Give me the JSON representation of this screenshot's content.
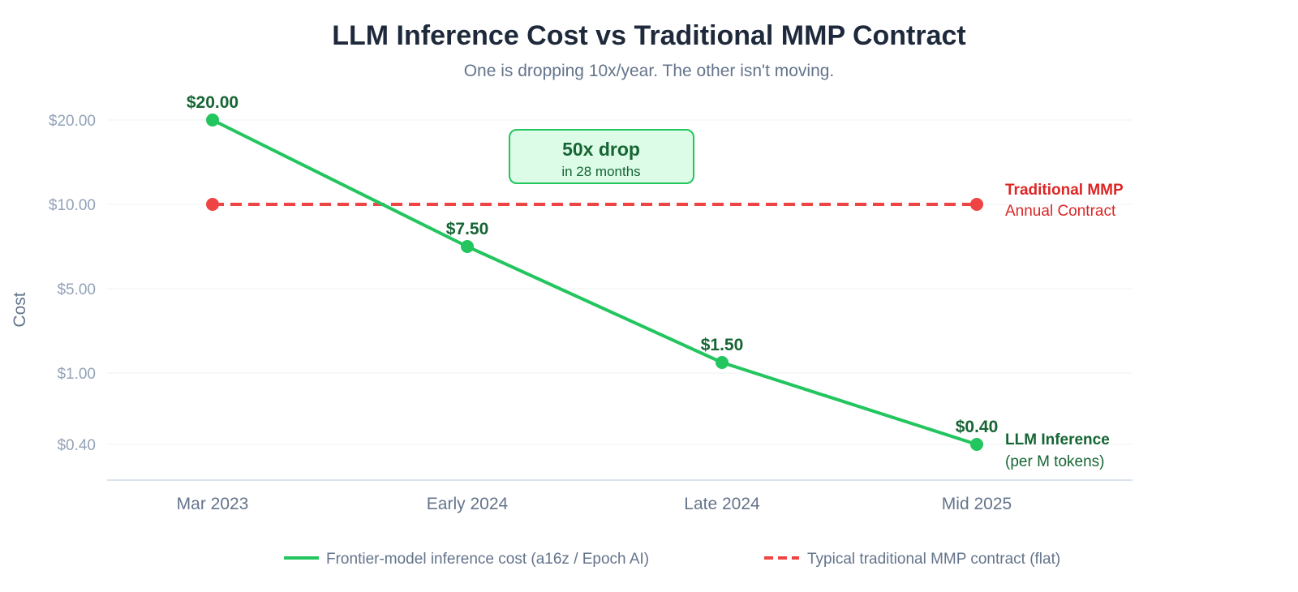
{
  "chart_data": {
    "type": "line",
    "title": "LLM Inference Cost vs Traditional MMP Contract",
    "subtitle": "One is dropping 10x/year. The other isn't moving.",
    "xlabel": "",
    "ylabel": "Cost",
    "categories": [
      "Mar 2023",
      "Early 2024",
      "Late 2024",
      "Mid 2025"
    ],
    "y_ticks": [
      {
        "value": 20,
        "label": "$20.00"
      },
      {
        "value": 10,
        "label": "$10.00"
      },
      {
        "value": 5,
        "label": "$5.00"
      },
      {
        "value": 1,
        "label": "$1.00"
      },
      {
        "value": 0.4,
        "label": "$0.40"
      }
    ],
    "series": [
      {
        "name": "Frontier-model inference cost (a16z / Epoch AI)",
        "color": "#22c55e",
        "style": "solid",
        "values": [
          20,
          7.5,
          1.5,
          0.4
        ],
        "data_labels": [
          "$20.00",
          "$7.50",
          "$1.50",
          "$0.40"
        ],
        "end_label_title": "LLM Inference",
        "end_label_sub": "(per M tokens)"
      },
      {
        "name": "Typical traditional MMP contract (flat)",
        "color": "#ef4444",
        "style": "dashed",
        "values": [
          10,
          null,
          null,
          10
        ],
        "end_label_title": "Traditional MMP",
        "end_label_sub": "Annual Contract"
      }
    ],
    "annotation": {
      "title": "50x drop",
      "subtitle": "in 28 months",
      "fill": "#dcfce7",
      "stroke": "#22c55e"
    },
    "grid": true,
    "legend_position": "bottom-center"
  }
}
